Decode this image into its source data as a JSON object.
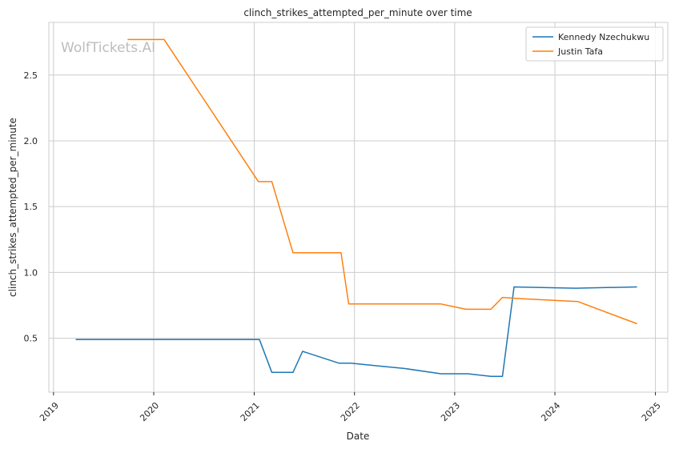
{
  "watermark": "WolfTickets.AI",
  "colors": {
    "grid": "#cccccc",
    "frame": "#cccccc",
    "text": "#262626"
  },
  "chart_data": {
    "type": "line",
    "title": "clinch_strikes_attempted_per_minute over time",
    "xlabel": "Date",
    "ylabel": "clinch_strikes_attempted_per_minute",
    "xlim": [
      "2018-12-15",
      "2025-02-15"
    ],
    "ylim": [
      0.09,
      2.9
    ],
    "x_ticks": [
      "2019",
      "2020",
      "2021",
      "2022",
      "2023",
      "2024",
      "2025"
    ],
    "y_ticks": [
      "0.5",
      "1.0",
      "1.5",
      "2.0",
      "2.5"
    ],
    "grid": true,
    "legend_position": "top-right",
    "series": [
      {
        "name": "Kennedy Nzechukwu",
        "color": "#1f77b4",
        "points": [
          [
            "2019-03-23",
            0.49
          ],
          [
            "2021-01-20",
            0.49
          ],
          [
            "2021-03-06",
            0.24
          ],
          [
            "2021-05-22",
            0.24
          ],
          [
            "2021-06-26",
            0.4
          ],
          [
            "2021-11-06",
            0.31
          ],
          [
            "2021-12-18",
            0.31
          ],
          [
            "2022-03-26",
            0.29
          ],
          [
            "2022-07-02",
            0.27
          ],
          [
            "2022-11-12",
            0.23
          ],
          [
            "2023-02-18",
            0.23
          ],
          [
            "2023-05-13",
            0.21
          ],
          [
            "2023-06-24",
            0.21
          ],
          [
            "2023-08-05",
            0.89
          ],
          [
            "2024-03-16",
            0.88
          ],
          [
            "2024-10-26",
            0.89
          ]
        ]
      },
      {
        "name": "Justin Tafa",
        "color": "#ff7f0e",
        "points": [
          [
            "2019-09-28",
            2.77
          ],
          [
            "2020-02-08",
            2.77
          ],
          [
            "2021-01-16",
            1.69
          ],
          [
            "2021-03-06",
            1.69
          ],
          [
            "2021-05-22",
            1.15
          ],
          [
            "2021-11-13",
            1.15
          ],
          [
            "2021-12-11",
            0.76
          ],
          [
            "2022-11-12",
            0.76
          ],
          [
            "2023-02-11",
            0.72
          ],
          [
            "2023-05-13",
            0.72
          ],
          [
            "2023-06-24",
            0.81
          ],
          [
            "2023-09-02",
            0.8
          ],
          [
            "2024-03-16",
            0.78
          ],
          [
            "2024-03-23",
            0.78
          ],
          [
            "2024-10-26",
            0.61
          ]
        ]
      }
    ]
  }
}
